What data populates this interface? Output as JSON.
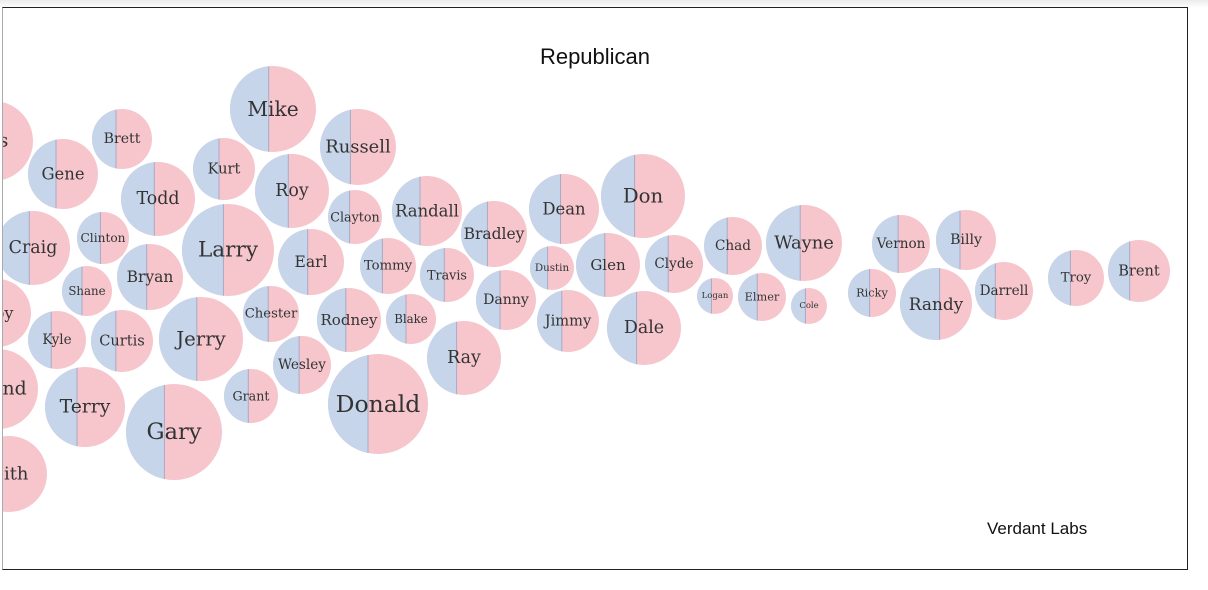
{
  "colors": {
    "democrat": "#c6d5ea",
    "republican": "#f6c6cc",
    "divider": "#a9a9c8",
    "text": "#333333"
  },
  "title": "Republican",
  "credit": "Verdant Labs",
  "chart_data": {
    "type": "bubble",
    "title": "Republican",
    "note": "Each bubble is a name; left half blue, right half red",
    "bubbles": [
      {
        "name": "Mike",
        "size": 43,
        "dem_share": 0.45
      },
      {
        "name": "Brett",
        "size": 30,
        "dem_share": 0.4
      },
      {
        "name": "Russell",
        "size": 38,
        "dem_share": 0.4
      },
      {
        "name": "Gene",
        "size": 35,
        "dem_share": 0.4
      },
      {
        "name": "Kurt",
        "size": 31,
        "dem_share": 0.42
      },
      {
        "name": "Todd",
        "size": 37,
        "dem_share": 0.45
      },
      {
        "name": "Roy",
        "size": 37,
        "dem_share": 0.45
      },
      {
        "name": "Clayton",
        "size": 27,
        "dem_share": 0.4
      },
      {
        "name": "Randall",
        "size": 35,
        "dem_share": 0.4
      },
      {
        "name": "Dean",
        "size": 35,
        "dem_share": 0.45
      },
      {
        "name": "Don",
        "size": 42,
        "dem_share": 0.4
      },
      {
        "name": "Bradley",
        "size": 33,
        "dem_share": 0.4
      },
      {
        "name": "Clinton",
        "size": 26,
        "dem_share": 0.45
      },
      {
        "name": "Craig",
        "size": 37,
        "dem_share": 0.45
      },
      {
        "name": "Larry",
        "size": 46,
        "dem_share": 0.45
      },
      {
        "name": "Earl",
        "size": 33,
        "dem_share": 0.45
      },
      {
        "name": "Tommy",
        "size": 28,
        "dem_share": 0.4
      },
      {
        "name": "Dustin",
        "size": 22,
        "dem_share": 0.4
      },
      {
        "name": "Glen",
        "size": 32,
        "dem_share": 0.45
      },
      {
        "name": "Clyde",
        "size": 29,
        "dem_share": 0.4
      },
      {
        "name": "Chad",
        "size": 29,
        "dem_share": 0.4
      },
      {
        "name": "Wayne",
        "size": 38,
        "dem_share": 0.45
      },
      {
        "name": "Vernon",
        "size": 29,
        "dem_share": 0.45
      },
      {
        "name": "Billy",
        "size": 30,
        "dem_share": 0.4
      },
      {
        "name": "Brent",
        "size": 31,
        "dem_share": 0.35
      },
      {
        "name": "Bryan",
        "size": 33,
        "dem_share": 0.45
      },
      {
        "name": "Shane",
        "size": 25,
        "dem_share": 0.4
      },
      {
        "name": "Travis",
        "size": 27,
        "dem_share": 0.45
      },
      {
        "name": "Danny",
        "size": 30,
        "dem_share": 0.4
      },
      {
        "name": "Troy",
        "size": 28,
        "dem_share": 0.4
      },
      {
        "name": "Darrell",
        "size": 29,
        "dem_share": 0.35
      },
      {
        "name": "Randy",
        "size": 36,
        "dem_share": 0.55
      },
      {
        "name": "Ricky",
        "size": 24,
        "dem_share": 0.45
      },
      {
        "name": "Logan",
        "size": 18,
        "dem_share": 0.4
      },
      {
        "name": "Elmer",
        "size": 24,
        "dem_share": 0.4
      },
      {
        "name": "Cole",
        "size": 18,
        "dem_share": 0.4
      },
      {
        "name": "Chester",
        "size": 28,
        "dem_share": 0.45
      },
      {
        "name": "Rodney",
        "size": 32,
        "dem_share": 0.45
      },
      {
        "name": "Blake",
        "size": 25,
        "dem_share": 0.4
      },
      {
        "name": "Jimmy",
        "size": 31,
        "dem_share": 0.4
      },
      {
        "name": "Dale",
        "size": 37,
        "dem_share": 0.4
      },
      {
        "name": "Kyle",
        "size": 29,
        "dem_share": 0.4
      },
      {
        "name": "Curtis",
        "size": 31,
        "dem_share": 0.4
      },
      {
        "name": "Jerry",
        "size": 42,
        "dem_share": 0.45
      },
      {
        "name": "Wesley",
        "size": 29,
        "dem_share": 0.45
      },
      {
        "name": "Ray",
        "size": 37,
        "dem_share": 0.4
      },
      {
        "name": "Terry",
        "size": 40,
        "dem_share": 0.4
      },
      {
        "name": "Grant",
        "size": 27,
        "dem_share": 0.45
      },
      {
        "name": "Gary",
        "size": 48,
        "dem_share": 0.4
      },
      {
        "name": "Donald",
        "size": 50,
        "dem_share": 0.4
      },
      {
        "name": "Douglas",
        "size": 40,
        "dem_share": 0.4,
        "visible_text": "las"
      },
      {
        "name": "Bobby",
        "size": 34,
        "dem_share": 0.4,
        "visible_text": "bby"
      },
      {
        "name": "Raymond",
        "size": 40,
        "dem_share": 0.4,
        "visible_text": "mond"
      },
      {
        "name": "Keith",
        "size": 38,
        "dem_share": 0.4,
        "visible_text": "eith"
      }
    ]
  }
}
